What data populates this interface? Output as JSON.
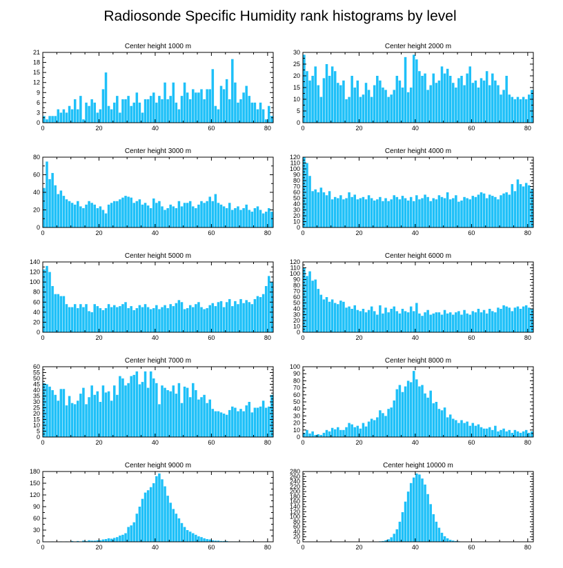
{
  "title": "Radiosonde Specific Humidity rank histograms by level",
  "bar_color": "#1ec0f8",
  "chart_data": [
    {
      "type": "bar",
      "title": "Center height 1000 m",
      "xlim": [
        0,
        82
      ],
      "ylim": [
        0,
        21
      ],
      "xticks": [
        0,
        20,
        40,
        60,
        80
      ],
      "yticks": [
        0,
        3,
        6,
        9,
        12,
        15,
        18,
        21
      ],
      "values": [
        2,
        1,
        2,
        2,
        2,
        4,
        3,
        4,
        3,
        5,
        4,
        7,
        4,
        8,
        1,
        6,
        5,
        7,
        6,
        3,
        4,
        10,
        15,
        5,
        4,
        6,
        8,
        3,
        7,
        7,
        8,
        5,
        6,
        9,
        6,
        3,
        7,
        7,
        8,
        9,
        6,
        8,
        7,
        12,
        7,
        8,
        12,
        6,
        4,
        8,
        12,
        9,
        7,
        10,
        9,
        9,
        10,
        7,
        10,
        10,
        16,
        5,
        4,
        11,
        10,
        13,
        7,
        19,
        12,
        6,
        7,
        9,
        11,
        8,
        6,
        6,
        4,
        6,
        4,
        1,
        5,
        2
      ]
    },
    {
      "type": "bar",
      "title": "Center height 2000 m",
      "xlim": [
        0,
        82
      ],
      "ylim": [
        0,
        30
      ],
      "xticks": [
        0,
        20,
        40,
        60,
        80
      ],
      "yticks": [
        0,
        5,
        10,
        15,
        20,
        25,
        30
      ],
      "values": [
        29,
        22,
        18,
        20,
        24,
        16,
        11,
        19,
        25,
        20,
        24,
        22,
        17,
        16,
        18,
        10,
        11,
        20,
        15,
        18,
        11,
        12,
        17,
        14,
        11,
        16,
        20,
        18,
        15,
        14,
        11,
        12,
        14,
        20,
        18,
        15,
        28,
        13,
        15,
        29,
        27,
        22,
        20,
        21,
        14,
        16,
        21,
        17,
        18,
        24,
        21,
        23,
        20,
        17,
        15,
        19,
        20,
        16,
        21,
        24,
        17,
        18,
        15,
        19,
        18,
        22,
        16,
        21,
        18,
        16,
        12,
        14,
        20,
        12,
        11,
        10,
        11,
        10,
        11,
        10,
        12,
        14
      ]
    },
    {
      "type": "bar",
      "title": "Center height 3000 m",
      "xlim": [
        0,
        82
      ],
      "ylim": [
        0,
        80
      ],
      "xticks": [
        0,
        20,
        40,
        60,
        80
      ],
      "yticks": [
        0,
        20,
        40,
        60,
        80
      ],
      "values": [
        45,
        75,
        55,
        62,
        48,
        38,
        42,
        36,
        32,
        30,
        28,
        26,
        30,
        24,
        22,
        26,
        30,
        28,
        26,
        22,
        24,
        20,
        16,
        26,
        28,
        30,
        30,
        32,
        34,
        36,
        35,
        34,
        28,
        30,
        32,
        26,
        28,
        25,
        22,
        33,
        28,
        30,
        24,
        20,
        22,
        26,
        24,
        22,
        30,
        24,
        28,
        28,
        30,
        24,
        22,
        26,
        30,
        28,
        30,
        35,
        30,
        38,
        28,
        26,
        24,
        22,
        28,
        20,
        22,
        24,
        20,
        22,
        26,
        20,
        18,
        22,
        24,
        20,
        16,
        18,
        22,
        18
      ]
    },
    {
      "type": "bar",
      "title": "Center height 4000 m",
      "xlim": [
        0,
        82
      ],
      "ylim": [
        0,
        120
      ],
      "xticks": [
        0,
        20,
        40,
        60,
        80
      ],
      "yticks": [
        0,
        10,
        20,
        30,
        40,
        50,
        60,
        70,
        80,
        90,
        100,
        110,
        120
      ],
      "values": [
        120,
        110,
        88,
        62,
        65,
        60,
        68,
        60,
        55,
        62,
        48,
        52,
        50,
        55,
        48,
        50,
        60,
        52,
        56,
        48,
        50,
        52,
        48,
        55,
        50,
        46,
        48,
        52,
        45,
        50,
        45,
        48,
        55,
        52,
        48,
        54,
        50,
        46,
        52,
        45,
        55,
        48,
        50,
        56,
        52,
        45,
        50,
        48,
        55,
        52,
        50,
        60,
        48,
        50,
        55,
        44,
        46,
        52,
        50,
        48,
        54,
        52,
        56,
        60,
        58,
        50,
        56,
        54,
        52,
        48,
        55,
        58,
        60,
        56,
        74,
        62,
        82,
        74,
        70,
        76,
        72,
        66
      ]
    },
    {
      "type": "bar",
      "title": "Center height 5000 m",
      "xlim": [
        0,
        82
      ],
      "ylim": [
        0,
        140
      ],
      "xticks": [
        0,
        20,
        40,
        60,
        80
      ],
      "yticks": [
        0,
        20,
        40,
        60,
        80,
        100,
        120,
        140
      ],
      "values": [
        125,
        132,
        120,
        92,
        76,
        76,
        72,
        72,
        56,
        50,
        50,
        56,
        48,
        56,
        50,
        56,
        42,
        40,
        56,
        52,
        48,
        44,
        48,
        56,
        50,
        54,
        50,
        52,
        56,
        60,
        48,
        52,
        44,
        48,
        54,
        50,
        56,
        50,
        46,
        48,
        54,
        46,
        50,
        54,
        48,
        56,
        52,
        58,
        64,
        60,
        46,
        48,
        54,
        50,
        56,
        60,
        50,
        46,
        48,
        54,
        58,
        52,
        60,
        62,
        50,
        60,
        66,
        52,
        62,
        56,
        66,
        58,
        64,
        60,
        56,
        66,
        72,
        70,
        76,
        92,
        112,
        100
      ]
    },
    {
      "type": "bar",
      "title": "Center height 6000 m",
      "xlim": [
        0,
        82
      ],
      "ylim": [
        0,
        120
      ],
      "xticks": [
        0,
        20,
        40,
        60,
        80
      ],
      "yticks": [
        0,
        10,
        20,
        30,
        40,
        50,
        60,
        70,
        80,
        90,
        100,
        110,
        120
      ],
      "values": [
        110,
        96,
        104,
        88,
        90,
        74,
        64,
        56,
        60,
        52,
        56,
        50,
        48,
        54,
        52,
        42,
        44,
        40,
        46,
        38,
        36,
        40,
        34,
        38,
        44,
        36,
        30,
        46,
        32,
        42,
        34,
        40,
        44,
        36,
        32,
        40,
        36,
        34,
        44,
        36,
        50,
        32,
        28,
        34,
        38,
        30,
        32,
        34,
        34,
        30,
        38,
        32,
        34,
        30,
        34,
        36,
        30,
        38,
        32,
        30,
        36,
        34,
        40,
        34,
        38,
        32,
        40,
        36,
        34,
        42,
        40,
        46,
        44,
        42,
        36,
        42,
        44,
        40,
        44,
        46,
        42,
        40
      ]
    },
    {
      "type": "bar",
      "title": "Center height 7000 m",
      "xlim": [
        0,
        82
      ],
      "ylim": [
        0,
        60
      ],
      "xticks": [
        0,
        20,
        40,
        60,
        80
      ],
      "yticks": [
        0,
        5,
        10,
        15,
        20,
        25,
        30,
        35,
        40,
        45,
        50,
        55,
        60
      ],
      "values": [
        46,
        45,
        43,
        40,
        36,
        31,
        41,
        41,
        27,
        35,
        29,
        28,
        31,
        37,
        42,
        28,
        34,
        44,
        36,
        39,
        30,
        44,
        38,
        39,
        31,
        44,
        36,
        52,
        50,
        44,
        46,
        52,
        53,
        56,
        45,
        47,
        56,
        42,
        56,
        50,
        46,
        28,
        44,
        42,
        40,
        39,
        44,
        37,
        46,
        29,
        43,
        42,
        34,
        46,
        40,
        32,
        34,
        36,
        29,
        32,
        24,
        22,
        22,
        21,
        20,
        19,
        23,
        26,
        25,
        22,
        24,
        22,
        27,
        30,
        21,
        25,
        25,
        26,
        31,
        25,
        26,
        36
      ]
    },
    {
      "type": "bar",
      "title": "Center height 8000 m",
      "xlim": [
        0,
        82
      ],
      "ylim": [
        0,
        100
      ],
      "xticks": [
        0,
        20,
        40,
        60,
        80
      ],
      "yticks": [
        0,
        10,
        20,
        30,
        40,
        50,
        60,
        70,
        80,
        90,
        100
      ],
      "values": [
        6,
        10,
        5,
        8,
        3,
        4,
        3,
        6,
        10,
        8,
        13,
        11,
        14,
        10,
        10,
        14,
        20,
        18,
        14,
        16,
        12,
        20,
        15,
        22,
        26,
        24,
        28,
        38,
        34,
        30,
        40,
        42,
        52,
        68,
        74,
        64,
        72,
        80,
        78,
        94,
        82,
        72,
        74,
        62,
        56,
        66,
        48,
        50,
        40,
        38,
        42,
        28,
        32,
        26,
        24,
        20,
        24,
        20,
        22,
        16,
        20,
        16,
        18,
        14,
        12,
        12,
        14,
        10,
        16,
        8,
        10,
        12,
        8,
        10,
        6,
        10,
        8,
        6,
        8,
        10,
        6,
        8
      ]
    },
    {
      "type": "bar",
      "title": "Center height 9000 m",
      "xlim": [
        0,
        82
      ],
      "ylim": [
        0,
        180
      ],
      "xticks": [
        0,
        20,
        40,
        60,
        80
      ],
      "yticks": [
        0,
        30,
        60,
        90,
        120,
        150,
        180
      ],
      "values": [
        1,
        0,
        0,
        1,
        0,
        0,
        1,
        0,
        1,
        0,
        2,
        1,
        2,
        1,
        3,
        2,
        4,
        3,
        3,
        4,
        4,
        6,
        7,
        9,
        8,
        10,
        12,
        16,
        18,
        22,
        38,
        42,
        50,
        72,
        90,
        110,
        126,
        132,
        140,
        150,
        168,
        175,
        160,
        142,
        118,
        100,
        84,
        72,
        60,
        48,
        38,
        30,
        26,
        22,
        18,
        14,
        12,
        9,
        7,
        6,
        4,
        3,
        3,
        2,
        2,
        2,
        1,
        1,
        1,
        1,
        1,
        1,
        0,
        1,
        0,
        1,
        0,
        0,
        0,
        1,
        0,
        0
      ]
    },
    {
      "type": "bar",
      "title": "Center height 10000 m",
      "xlim": [
        0,
        82
      ],
      "ylim": [
        0,
        280
      ],
      "xticks": [
        0,
        20,
        40,
        60,
        80
      ],
      "yticks": [
        0,
        20,
        40,
        60,
        80,
        100,
        120,
        140,
        160,
        180,
        200,
        220,
        240,
        260,
        280
      ],
      "values": [
        0,
        0,
        0,
        0,
        0,
        0,
        0,
        0,
        0,
        0,
        0,
        0,
        0,
        0,
        0,
        0,
        0,
        0,
        0,
        0,
        0,
        0,
        0,
        0,
        0,
        1,
        1,
        2,
        3,
        6,
        10,
        18,
        32,
        50,
        80,
        118,
        160,
        200,
        234,
        256,
        272,
        268,
        252,
        228,
        190,
        150,
        110,
        80,
        56,
        36,
        22,
        14,
        8,
        5,
        3,
        2,
        1,
        1,
        0,
        0,
        0,
        0,
        0,
        0,
        0,
        0,
        0,
        0,
        0,
        0,
        0,
        0,
        0,
        0,
        0,
        0,
        0,
        0,
        0,
        0,
        0,
        0
      ]
    }
  ]
}
